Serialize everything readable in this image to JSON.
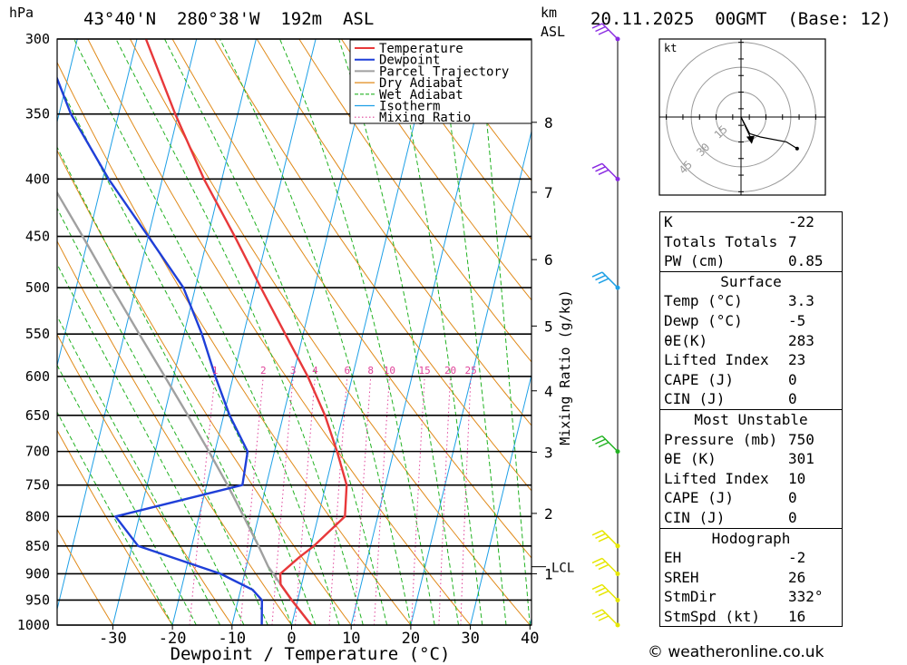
{
  "header": {
    "location": "43°40'N  280°38'W  192m  ASL",
    "run": "20.11.2025  00GMT  (Base: 12)",
    "hpa_label": "hPa",
    "km_label": "km",
    "asl_label": "ASL"
  },
  "chart_data": {
    "type": "skew-t",
    "title": "43°40'N  280°38'W  192m  ASL",
    "xlabel": "Dewpoint / Temperature (°C)",
    "ylabel": "hPa",
    "secondary_ylabel": "Mixing Ratio (g/kg)",
    "xlim": [
      -40,
      40
    ],
    "ylim": [
      1000,
      300
    ],
    "x_ticks": [
      -30,
      -20,
      -10,
      0,
      10,
      20,
      30,
      40
    ],
    "pressure_levels": [
      300,
      350,
      400,
      450,
      500,
      550,
      600,
      650,
      700,
      750,
      800,
      850,
      900,
      950,
      1000
    ],
    "km_ticks": [
      {
        "label": "8",
        "pressure": 356
      },
      {
        "label": "7",
        "pressure": 411
      },
      {
        "label": "6",
        "pressure": 472
      },
      {
        "label": "5",
        "pressure": 541
      },
      {
        "label": "4",
        "pressure": 618
      },
      {
        "label": "3",
        "pressure": 701
      },
      {
        "label": "2",
        "pressure": 795
      },
      {
        "label": "1",
        "pressure": 900
      }
    ],
    "lcl": {
      "label": "LCL",
      "pressure": 887
    },
    "mixing_ratio_labels": [
      "1",
      "2",
      "3",
      "4",
      "6",
      "8",
      "10",
      "15",
      "20",
      "25"
    ],
    "mixing_ratio_values": [
      1,
      2,
      3,
      4,
      6,
      8,
      10,
      15,
      20,
      25
    ],
    "legend": [
      {
        "name": "Temperature",
        "color": "#e8383a",
        "style": "solid"
      },
      {
        "name": "Dewpoint",
        "color": "#1f3fd8",
        "style": "solid"
      },
      {
        "name": "Parcel Trajectory",
        "color": "#a0a0a0",
        "style": "solid"
      },
      {
        "name": "Dry Adiabat",
        "color": "#e08a1a",
        "style": "solid"
      },
      {
        "name": "Wet Adiabat",
        "color": "#22b222",
        "style": "dashed"
      },
      {
        "name": "Isotherm",
        "color": "#1ea0e6",
        "style": "solid"
      },
      {
        "name": "Mixing Ratio",
        "color": "#e0449a",
        "style": "dotted"
      }
    ],
    "series": [
      {
        "name": "Temperature",
        "points": [
          {
            "p": 1000,
            "t": 3.3
          },
          {
            "p": 950,
            "t": -1.0
          },
          {
            "p": 920,
            "t": -3.5
          },
          {
            "p": 900,
            "t": -4.0
          },
          {
            "p": 870,
            "t": -1.5
          },
          {
            "p": 850,
            "t": 0.5
          },
          {
            "p": 800,
            "t": 4.5
          },
          {
            "p": 750,
            "t": 3.5
          },
          {
            "p": 700,
            "t": 0.5
          },
          {
            "p": 650,
            "t": -3.0
          },
          {
            "p": 600,
            "t": -7.5
          },
          {
            "p": 550,
            "t": -13.0
          },
          {
            "p": 500,
            "t": -19.0
          },
          {
            "p": 450,
            "t": -25.5
          },
          {
            "p": 400,
            "t": -33.0
          },
          {
            "p": 350,
            "t": -40.5
          },
          {
            "p": 300,
            "t": -48.5
          }
        ]
      },
      {
        "name": "Dewpoint",
        "points": [
          {
            "p": 1000,
            "t": -5.0
          },
          {
            "p": 950,
            "t": -6.0
          },
          {
            "p": 930,
            "t": -8.0
          },
          {
            "p": 900,
            "t": -14.0
          },
          {
            "p": 850,
            "t": -29.0
          },
          {
            "p": 800,
            "t": -34.0
          },
          {
            "p": 750,
            "t": -14.0
          },
          {
            "p": 700,
            "t": -14.5
          },
          {
            "p": 650,
            "t": -19.0
          },
          {
            "p": 600,
            "t": -23.0
          },
          {
            "p": 550,
            "t": -27.0
          },
          {
            "p": 500,
            "t": -32.0
          },
          {
            "p": 450,
            "t": -40.0
          },
          {
            "p": 400,
            "t": -49.0
          },
          {
            "p": 350,
            "t": -58.0
          },
          {
            "p": 300,
            "t": -66.0
          }
        ]
      },
      {
        "name": "Parcel Trajectory",
        "points": [
          {
            "p": 1000,
            "t": 3.3
          },
          {
            "p": 950,
            "t": -1.0
          },
          {
            "p": 887,
            "t": -6.3
          },
          {
            "p": 850,
            "t": -8.8
          },
          {
            "p": 800,
            "t": -12.5
          },
          {
            "p": 750,
            "t": -16.5
          },
          {
            "p": 700,
            "t": -21.0
          },
          {
            "p": 650,
            "t": -26.0
          },
          {
            "p": 600,
            "t": -31.5
          },
          {
            "p": 550,
            "t": -37.5
          },
          {
            "p": 500,
            "t": -44.0
          },
          {
            "p": 450,
            "t": -51.0
          },
          {
            "p": 400,
            "t": -59.0
          },
          {
            "p": 350,
            "t": -68.0
          },
          {
            "p": 300,
            "t": -78.0
          }
        ]
      }
    ],
    "wind_barbs": [
      {
        "p": 300,
        "color": "#8a2be2"
      },
      {
        "p": 400,
        "color": "#8a2be2"
      },
      {
        "p": 500,
        "color": "#1ea0e6"
      },
      {
        "p": 700,
        "color": "#22b222"
      },
      {
        "p": 850,
        "color": "#e6e600"
      },
      {
        "p": 900,
        "color": "#e6e600"
      },
      {
        "p": 950,
        "color": "#e6e600"
      },
      {
        "p": 1000,
        "color": "#e6e600"
      }
    ]
  },
  "hodograph": {
    "unit_label": "kt",
    "ring_labels": [
      "15",
      "30",
      "45"
    ],
    "points_u_v": [
      [
        0,
        0
      ],
      [
        4,
        -10
      ],
      [
        9,
        -12
      ],
      [
        21,
        -15
      ],
      [
        26,
        -19
      ]
    ],
    "storm_motion_u_v": [
      5,
      -14
    ]
  },
  "indices": {
    "general": [
      {
        "label": "K",
        "value": "-22"
      },
      {
        "label": "Totals Totals",
        "value": "7"
      },
      {
        "label": "PW (cm)",
        "value": "0.85"
      }
    ],
    "surface": {
      "title": "Surface",
      "rows": [
        {
          "label": "Temp (°C)",
          "value": "3.3"
        },
        {
          "label": "Dewp (°C)",
          "value": "-5"
        },
        {
          "label": "θE(K)",
          "value": "283"
        },
        {
          "label": "Lifted Index",
          "value": "23"
        },
        {
          "label": "CAPE (J)",
          "value": "0"
        },
        {
          "label": "CIN (J)",
          "value": "0"
        }
      ]
    },
    "most_unstable": {
      "title": "Most Unstable",
      "rows": [
        {
          "label": "Pressure (mb)",
          "value": "750"
        },
        {
          "label": "θE (K)",
          "value": "301"
        },
        {
          "label": "Lifted Index",
          "value": "10"
        },
        {
          "label": "CAPE (J)",
          "value": "0"
        },
        {
          "label": "CIN (J)",
          "value": "0"
        }
      ]
    },
    "hodograph": {
      "title": "Hodograph",
      "rows": [
        {
          "label": "EH",
          "value": "-2"
        },
        {
          "label": "SREH",
          "value": "26"
        },
        {
          "label": "StmDir",
          "value": "332°"
        },
        {
          "label": "StmSpd (kt)",
          "value": "16"
        }
      ]
    }
  },
  "footer": {
    "copyright": "© weatheronline.co.uk"
  },
  "colors": {
    "temperature": "#e8383a",
    "dewpoint": "#1f3fd8",
    "parcel": "#a0a0a0",
    "dry_adiabat": "#e08a1a",
    "wet_adiabat": "#22b222",
    "isotherm": "#1ea0e6",
    "mixing_ratio": "#e0449a"
  }
}
